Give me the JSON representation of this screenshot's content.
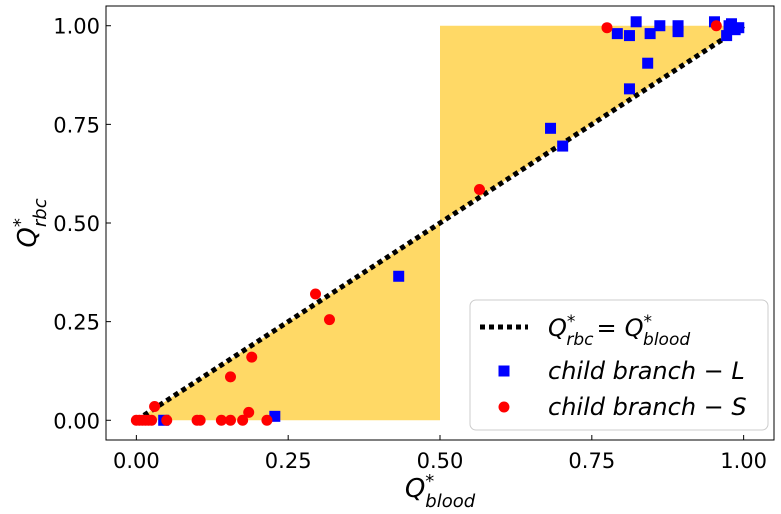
{
  "chart_data": {
    "type": "scatter",
    "xlim": [
      -0.05,
      1.05
    ],
    "ylim": [
      -0.05,
      1.05
    ],
    "xticks": [
      0.0,
      0.25,
      0.5,
      0.75,
      1.0
    ],
    "yticks": [
      0.0,
      0.25,
      0.5,
      0.75,
      1.0
    ],
    "xtick_labels": [
      "0.00",
      "0.25",
      "0.50",
      "0.75",
      "1.00"
    ],
    "ytick_labels": [
      "0.00",
      "0.25",
      "0.50",
      "0.75",
      "1.00"
    ],
    "xlabel": {
      "base": "Q",
      "sup": "*",
      "sub": "blood"
    },
    "ylabel": {
      "base": "Q",
      "sup": "*",
      "sub": "rbc"
    },
    "grid": false,
    "legend_position": "lower-right",
    "shaded_region": {
      "color": "#FFD966",
      "polygon": [
        [
          0.0,
          0.0
        ],
        [
          0.5,
          0.0
        ],
        [
          0.5,
          1.0
        ],
        [
          1.0,
          1.0
        ]
      ]
    },
    "series": [
      {
        "name": "Q*rbc = Q*blood",
        "legend_parts": {
          "lhs_base": "Q",
          "lhs_sup": "*",
          "lhs_sub": "rbc",
          "eq": "=",
          "rhs_base": "Q",
          "rhs_sup": "*",
          "rhs_sub": "blood"
        },
        "kind": "line",
        "style": "dotted",
        "color": "#000000",
        "x": [
          0.0,
          1.0
        ],
        "y": [
          0.0,
          1.0
        ]
      },
      {
        "name": "child branch − L",
        "kind": "scatter",
        "marker": "square",
        "color": "#0000FF",
        "x": [
          0.045,
          0.228,
          0.432,
          0.682,
          0.702,
          0.792,
          0.812,
          0.812,
          0.823,
          0.842,
          0.846,
          0.862,
          0.892,
          0.892,
          0.952,
          0.972,
          0.976,
          0.98,
          0.986,
          0.992
        ],
        "y": [
          0.0,
          0.01,
          0.365,
          0.74,
          0.695,
          0.98,
          0.84,
          0.975,
          1.01,
          0.905,
          0.98,
          1.0,
          0.985,
          1.0,
          1.01,
          0.975,
          1.0,
          1.005,
          0.99,
          0.995
        ]
      },
      {
        "name": "child branch − S",
        "kind": "scatter",
        "marker": "circle",
        "color": "#FF0000",
        "x": [
          0.0,
          0.005,
          0.01,
          0.015,
          0.02,
          0.025,
          0.03,
          0.05,
          0.1,
          0.105,
          0.14,
          0.155,
          0.155,
          0.175,
          0.185,
          0.19,
          0.215,
          0.295,
          0.318,
          0.565,
          0.775,
          0.955
        ],
        "y": [
          0.0,
          0.0,
          0.0,
          0.0,
          0.0,
          0.0,
          0.035,
          0.0,
          0.0,
          0.0,
          0.0,
          0.0,
          0.11,
          0.0,
          0.02,
          0.16,
          0.0,
          0.32,
          0.255,
          0.585,
          0.995,
          1.0
        ]
      }
    ]
  }
}
